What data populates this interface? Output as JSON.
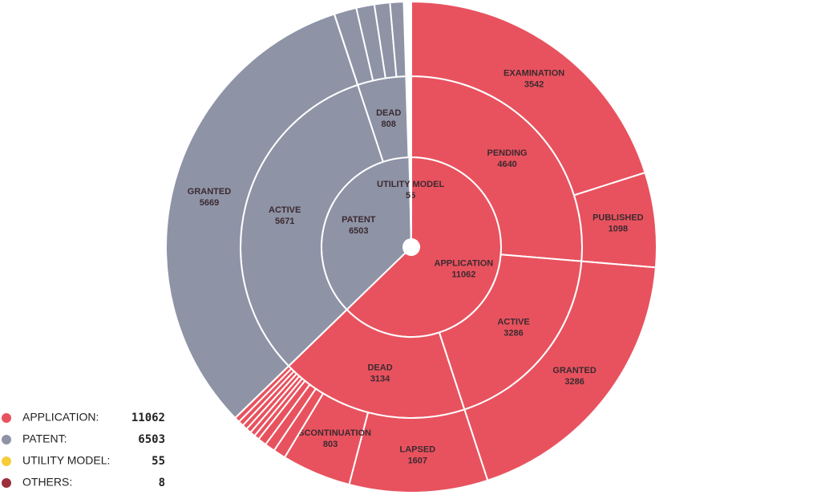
{
  "chart_data": {
    "type": "sunburst",
    "nodes": [
      {
        "name": "APPLICATION",
        "value": 11062,
        "color": "#e8525e",
        "children": [
          {
            "name": "PENDING",
            "value": 4640,
            "children": [
              {
                "name": "EXAMINATION",
                "value": 3542
              },
              {
                "name": "PUBLISHED",
                "value": 1098
              }
            ]
          },
          {
            "name": "ACTIVE",
            "value": 3286,
            "children": [
              {
                "name": "GRANTED",
                "value": 3286
              }
            ]
          },
          {
            "name": "DEAD",
            "value": 3134,
            "children": [
              {
                "name": "LAPSED",
                "value": 1607
              },
              {
                "name": "DISCONTINUATION",
                "value": 803
              },
              {
                "name": null,
                "value": 144
              },
              {
                "name": null,
                "value": 120
              },
              {
                "name": null,
                "value": 100
              },
              {
                "name": null,
                "value": 60
              },
              {
                "name": null,
                "value": 60
              },
              {
                "name": null,
                "value": 60
              },
              {
                "name": null,
                "value": 60
              },
              {
                "name": null,
                "value": 60
              },
              {
                "name": null,
                "value": 60
              }
            ]
          }
        ]
      },
      {
        "name": "PATENT",
        "value": 6503,
        "color": "#8e93a6",
        "children": [
          {
            "name": "ACTIVE",
            "value": 5671,
            "children": [
              {
                "name": "GRANTED",
                "value": 5669
              }
            ]
          },
          {
            "name": "DEAD",
            "value": 808,
            "children": [
              {
                "name": null,
                "value": 260
              },
              {
                "name": null,
                "value": 210
              },
              {
                "name": null,
                "value": 180
              },
              {
                "name": null,
                "value": 158
              }
            ]
          }
        ]
      },
      {
        "name": "UTILITY MODEL",
        "value": 55,
        "color": "#f5cd3a",
        "children": [
          {
            "name": null,
            "value": 25
          },
          {
            "name": null,
            "value": 20
          },
          {
            "name": null,
            "value": 10
          }
        ]
      },
      {
        "name": "OTHERS",
        "value": 8,
        "color": "#9c2f3b"
      }
    ],
    "legend": [
      {
        "label": "APPLICATION:"
      },
      {
        "label": "PATENT:"
      },
      {
        "label": "UTILITY MODEL:"
      },
      {
        "label": "OTHERS:"
      }
    ]
  }
}
